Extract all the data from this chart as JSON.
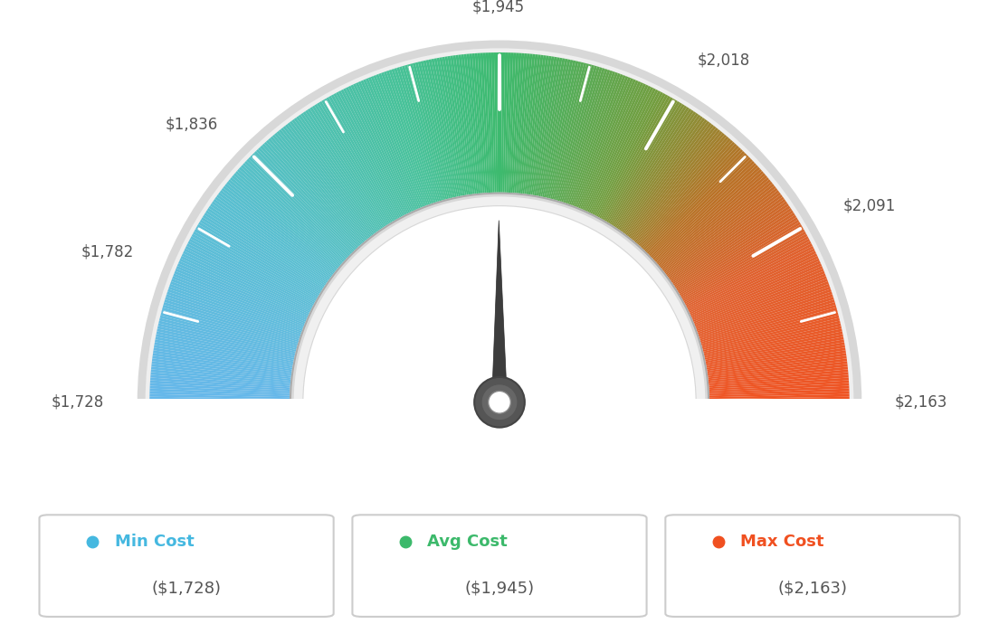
{
  "min_val": 1728,
  "avg_val": 1945,
  "max_val": 2163,
  "tick_labels": [
    "$1,728",
    "$1,782",
    "$1,836",
    "$1,945",
    "$2,018",
    "$2,091",
    "$2,163"
  ],
  "tick_values": [
    1728,
    1782,
    1836,
    1945,
    2018,
    2091,
    2163
  ],
  "legend": [
    {
      "label": "Min Cost",
      "value": "($1,728)",
      "color": "#45b8e0"
    },
    {
      "label": "Avg Cost",
      "value": "($1,945)",
      "color": "#3cb96b"
    },
    {
      "label": "Max Cost",
      "value": "($2,163)",
      "color": "#f05020"
    }
  ],
  "needle_value": 1945,
  "bg_color": "#ffffff",
  "color_stops": [
    [
      0.0,
      [
        0.4,
        0.72,
        0.92
      ]
    ],
    [
      0.2,
      [
        0.35,
        0.75,
        0.82
      ]
    ],
    [
      0.4,
      [
        0.28,
        0.76,
        0.6
      ]
    ],
    [
      0.5,
      [
        0.24,
        0.73,
        0.43
      ]
    ],
    [
      0.65,
      [
        0.45,
        0.62,
        0.25
      ]
    ],
    [
      0.75,
      [
        0.72,
        0.45,
        0.15
      ]
    ],
    [
      0.85,
      [
        0.88,
        0.38,
        0.18
      ]
    ],
    [
      1.0,
      [
        0.94,
        0.33,
        0.14
      ]
    ]
  ]
}
